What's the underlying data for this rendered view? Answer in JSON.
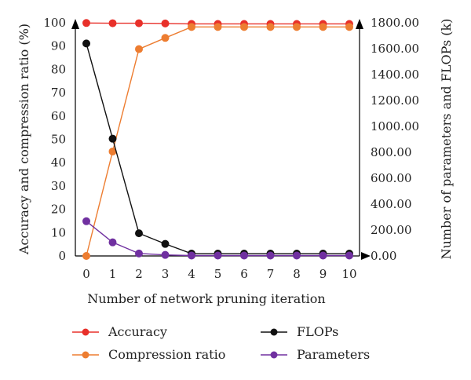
{
  "chart_data": {
    "type": "line",
    "xlabel": "Number of network pruning iteration",
    "ylabel_left": "Accuracy and compression ratio (%)",
    "ylabel_right": "Number of parameters and FLOPs (k)",
    "x": [
      0,
      1,
      2,
      3,
      4,
      5,
      6,
      7,
      8,
      9,
      10
    ],
    "ylim_left": [
      0,
      100
    ],
    "ylim_right": [
      0,
      1800
    ],
    "yticks_left": [
      "0",
      "10",
      "20",
      "30",
      "40",
      "50",
      "60",
      "70",
      "80",
      "90",
      "100"
    ],
    "yticks_right": [
      "0.00",
      "200.00",
      "400.00",
      "600.00",
      "800.00",
      "1000.00",
      "1200.00",
      "1400.00",
      "1600.00",
      "1800.00"
    ],
    "grid": false,
    "legend_position": "bottom",
    "series": [
      {
        "name": "Accuracy",
        "axis": "left",
        "color": "#e8302a",
        "values": [
          99.9,
          99.8,
          99.8,
          99.7,
          99.5,
          99.5,
          99.5,
          99.5,
          99.5,
          99.5,
          99.5
        ]
      },
      {
        "name": "Compression ratio",
        "axis": "left",
        "color": "#ed7d31",
        "values": [
          0,
          44.8,
          88.7,
          93.5,
          98.2,
          98.2,
          98.2,
          98.2,
          98.2,
          98.2,
          98.2
        ]
      },
      {
        "name": "FLOPs",
        "axis": "right",
        "color": "#111111",
        "values": [
          1640,
          905,
          175,
          93,
          18,
          18,
          18,
          18,
          18,
          18,
          18
        ]
      },
      {
        "name": "Parameters",
        "axis": "right",
        "color": "#7030a0",
        "values": [
          268,
          105,
          19,
          8,
          3,
          3,
          3,
          3,
          3,
          3,
          3
        ]
      }
    ]
  }
}
